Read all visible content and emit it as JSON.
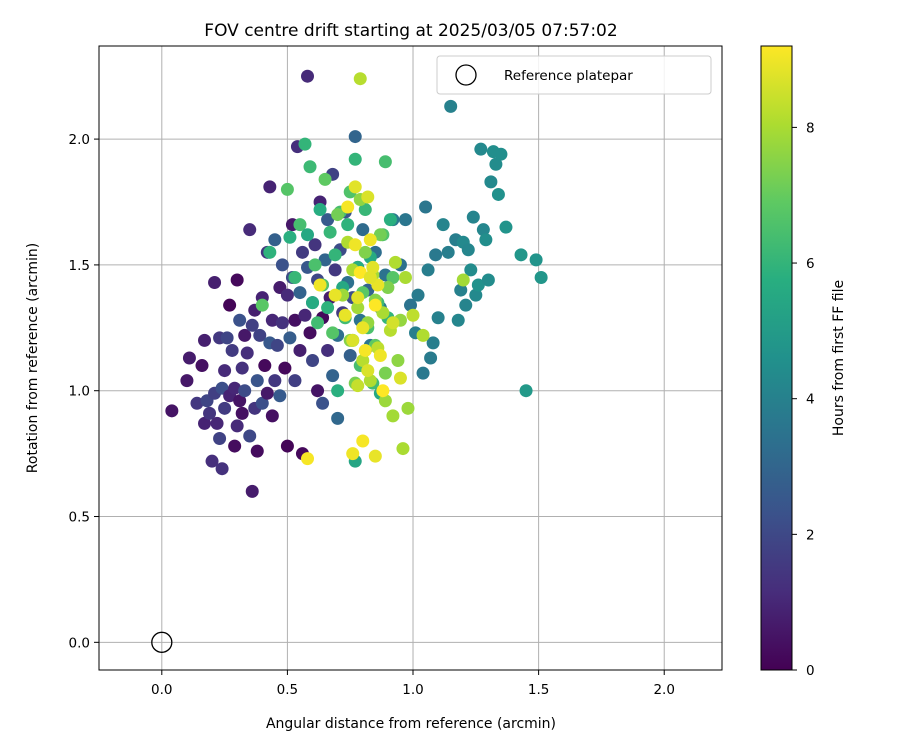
{
  "chart_data": {
    "type": "scatter",
    "title": "FOV centre drift starting at 2025/03/05 07:57:02",
    "xlabel": "Angular distance from reference (arcmin)",
    "ylabel": "Rotation from reference (arcmin)",
    "xlim": [
      -0.25,
      2.23
    ],
    "ylim": [
      -0.11,
      2.37
    ],
    "xticks": [
      "0.0",
      "0.5",
      "1.0",
      "1.5",
      "2.0"
    ],
    "yticks": [
      "0.0",
      "0.5",
      "1.0",
      "1.5",
      "2.0"
    ],
    "grid": true,
    "legend": {
      "position": "top-right",
      "label": "Reference platepar"
    },
    "reference_point": {
      "x": 0.0,
      "y": 0.0
    },
    "colorbar": {
      "label": "Hours from first FF file",
      "colormap": "viridis",
      "range": [
        0,
        9.2
      ],
      "ticks": [
        "0",
        "2",
        "4",
        "6",
        "8"
      ]
    },
    "points": [
      [
        0.04,
        0.92,
        0.5
      ],
      [
        0.1,
        1.04,
        0.6
      ],
      [
        0.11,
        1.13,
        0.7
      ],
      [
        0.14,
        0.95,
        1.5
      ],
      [
        0.16,
        1.1,
        0.4
      ],
      [
        0.17,
        0.87,
        0.9
      ],
      [
        0.17,
        1.2,
        0.8
      ],
      [
        0.18,
        0.96,
        1.9
      ],
      [
        0.19,
        0.91,
        1.4
      ],
      [
        0.2,
        0.72,
        1.2
      ],
      [
        0.21,
        1.43,
        0.8
      ],
      [
        0.21,
        0.99,
        1.7
      ],
      [
        0.22,
        0.87,
        1.0
      ],
      [
        0.23,
        1.21,
        1.5
      ],
      [
        0.23,
        0.81,
        1.8
      ],
      [
        0.24,
        0.69,
        1.3
      ],
      [
        0.24,
        1.01,
        2.2
      ],
      [
        0.25,
        0.93,
        1.6
      ],
      [
        0.25,
        1.08,
        1.1
      ],
      [
        0.26,
        1.21,
        1.9
      ],
      [
        0.27,
        1.34,
        0.1
      ],
      [
        0.27,
        0.98,
        0.9
      ],
      [
        0.28,
        1.16,
        1.6
      ],
      [
        0.29,
        1.01,
        1.0
      ],
      [
        0.29,
        0.78,
        0.3
      ],
      [
        0.3,
        1.44,
        0.2
      ],
      [
        0.3,
        0.86,
        1.1
      ],
      [
        0.31,
        1.28,
        2.3
      ],
      [
        0.31,
        0.96,
        0.5
      ],
      [
        0.32,
        1.09,
        1.3
      ],
      [
        0.32,
        0.91,
        0.4
      ],
      [
        0.33,
        1.22,
        0.6
      ],
      [
        0.33,
        1.0,
        2.1
      ],
      [
        0.34,
        1.15,
        1.2
      ],
      [
        0.35,
        1.64,
        1.1
      ],
      [
        0.35,
        0.82,
        2.0
      ],
      [
        0.36,
        0.6,
        0.7
      ],
      [
        0.36,
        1.26,
        1.7
      ],
      [
        0.37,
        1.32,
        0.8
      ],
      [
        0.37,
        0.93,
        1.4
      ],
      [
        0.38,
        1.04,
        2.4
      ],
      [
        0.38,
        0.76,
        0.3
      ],
      [
        0.39,
        1.22,
        1.8
      ],
      [
        0.4,
        0.95,
        2.2
      ],
      [
        0.4,
        1.37,
        0.9
      ],
      [
        0.41,
        1.1,
        0.2
      ],
      [
        0.42,
        1.55,
        1.4
      ],
      [
        0.42,
        0.99,
        0.6
      ],
      [
        0.43,
        1.81,
        0.9
      ],
      [
        0.43,
        1.19,
        2.5
      ],
      [
        0.44,
        0.9,
        0.4
      ],
      [
        0.44,
        1.28,
        1.0
      ],
      [
        0.45,
        1.04,
        1.5
      ],
      [
        0.45,
        1.6,
        2.8
      ],
      [
        0.46,
        1.18,
        1.9
      ],
      [
        0.47,
        1.41,
        0.7
      ],
      [
        0.47,
        0.98,
        2.6
      ],
      [
        0.48,
        1.27,
        1.3
      ],
      [
        0.48,
        1.5,
        2.3
      ],
      [
        0.49,
        1.09,
        0.2
      ],
      [
        0.5,
        1.38,
        1.1
      ],
      [
        0.5,
        0.78,
        0.1
      ],
      [
        0.51,
        1.21,
        2.7
      ],
      [
        0.52,
        1.45,
        2.1
      ],
      [
        0.52,
        1.66,
        0.6
      ],
      [
        0.53,
        1.28,
        0.4
      ],
      [
        0.53,
        1.04,
        1.7
      ],
      [
        0.54,
        1.97,
        1.2
      ],
      [
        0.55,
        1.39,
        2.9
      ],
      [
        0.55,
        1.16,
        0.8
      ],
      [
        0.56,
        1.55,
        1.6
      ],
      [
        0.56,
        0.75,
        0.2
      ],
      [
        0.57,
        1.3,
        1.0
      ],
      [
        0.58,
        2.25,
        1.1
      ],
      [
        0.58,
        1.49,
        2.5
      ],
      [
        0.59,
        1.23,
        0.3
      ],
      [
        0.6,
        1.12,
        1.9
      ],
      [
        0.6,
        1.35,
        3.1
      ],
      [
        0.61,
        1.58,
        1.4
      ],
      [
        0.62,
        1.0,
        0.5
      ],
      [
        0.62,
        1.44,
        2.0
      ],
      [
        0.63,
        1.75,
        0.9
      ],
      [
        0.64,
        1.29,
        0.2
      ],
      [
        0.64,
        0.95,
        2.3
      ],
      [
        0.65,
        1.52,
        3.0
      ],
      [
        0.66,
        1.16,
        1.2
      ],
      [
        0.66,
        1.68,
        2.6
      ],
      [
        0.67,
        1.37,
        0.7
      ],
      [
        0.68,
        1.06,
        2.9
      ],
      [
        0.68,
        1.86,
        1.8
      ],
      [
        0.69,
        1.48,
        1.5
      ],
      [
        0.7,
        1.22,
        3.3
      ],
      [
        0.7,
        0.89,
        3.1
      ],
      [
        0.71,
        1.56,
        2.1
      ],
      [
        0.72,
        1.31,
        1.6
      ],
      [
        0.73,
        1.71,
        2.4
      ],
      [
        0.74,
        1.43,
        3.4
      ],
      [
        0.75,
        1.14,
        2.8
      ],
      [
        0.76,
        1.37,
        2.2
      ],
      [
        0.77,
        2.01,
        3.0
      ],
      [
        0.78,
        1.49,
        2.7
      ],
      [
        0.79,
        1.28,
        3.5
      ],
      [
        0.8,
        1.64,
        3.2
      ],
      [
        0.82,
        1.4,
        2.9
      ],
      [
        0.83,
        1.18,
        3.6
      ],
      [
        0.85,
        1.55,
        3.3
      ],
      [
        0.87,
        1.33,
        3.8
      ],
      [
        0.89,
        1.46,
        3.5
      ],
      [
        0.92,
        1.68,
        3.7
      ],
      [
        0.95,
        1.5,
        3.4
      ],
      [
        0.97,
        1.68,
        3.6
      ],
      [
        0.99,
        1.34,
        3.5
      ],
      [
        1.01,
        1.23,
        3.9
      ],
      [
        1.02,
        1.38,
        3.8
      ],
      [
        1.04,
        1.07,
        3.7
      ],
      [
        1.05,
        1.73,
        3.6
      ],
      [
        1.06,
        1.48,
        3.9
      ],
      [
        1.07,
        1.13,
        3.8
      ],
      [
        1.08,
        1.19,
        3.9
      ],
      [
        1.09,
        1.54,
        3.7
      ],
      [
        1.1,
        1.29,
        4.0
      ],
      [
        1.12,
        1.66,
        4.1
      ],
      [
        1.14,
        1.55,
        3.9
      ],
      [
        1.15,
        2.13,
        4.0
      ],
      [
        1.17,
        1.6,
        3.9
      ],
      [
        1.18,
        1.28,
        4.2
      ],
      [
        1.19,
        1.4,
        4.0
      ],
      [
        1.2,
        1.59,
        4.3
      ],
      [
        1.21,
        1.34,
        4.1
      ],
      [
        1.22,
        1.56,
        4.2
      ],
      [
        1.23,
        1.48,
        4.4
      ],
      [
        1.24,
        1.69,
        4.1
      ],
      [
        1.25,
        1.38,
        4.3
      ],
      [
        1.26,
        1.42,
        4.6
      ],
      [
        1.27,
        1.96,
        4.3
      ],
      [
        1.28,
        1.64,
        4.2
      ],
      [
        1.29,
        1.6,
        4.5
      ],
      [
        1.3,
        1.44,
        4.4
      ],
      [
        1.31,
        1.83,
        4.3
      ],
      [
        1.32,
        1.95,
        4.5
      ],
      [
        1.33,
        1.9,
        4.4
      ],
      [
        1.34,
        1.78,
        4.6
      ],
      [
        1.35,
        1.94,
        4.5
      ],
      [
        1.37,
        1.65,
        4.7
      ],
      [
        1.43,
        1.54,
        4.8
      ],
      [
        1.45,
        1.0,
        4.9
      ],
      [
        1.49,
        1.52,
        4.7
      ],
      [
        1.51,
        1.45,
        4.8
      ],
      [
        0.4,
        1.34,
        6.8
      ],
      [
        0.43,
        1.55,
        5.9
      ],
      [
        0.5,
        1.8,
        6.7
      ],
      [
        0.51,
        1.61,
        5.8
      ],
      [
        0.53,
        1.45,
        6.1
      ],
      [
        0.55,
        1.66,
        6.4
      ],
      [
        0.57,
        1.98,
        6.0
      ],
      [
        0.58,
        1.62,
        5.5
      ],
      [
        0.59,
        1.89,
        6.2
      ],
      [
        0.6,
        1.35,
        5.6
      ],
      [
        0.61,
        1.5,
        6.5
      ],
      [
        0.62,
        1.27,
        6.3
      ],
      [
        0.63,
        1.72,
        5.7
      ],
      [
        0.64,
        1.42,
        6.6
      ],
      [
        0.65,
        1.84,
        6.9
      ],
      [
        0.66,
        1.33,
        5.9
      ],
      [
        0.67,
        1.63,
        6.1
      ],
      [
        0.68,
        1.23,
        6.7
      ],
      [
        0.69,
        1.54,
        6.0
      ],
      [
        0.7,
        1.0,
        5.8
      ],
      [
        0.71,
        1.71,
        6.4
      ],
      [
        0.72,
        1.41,
        5.5
      ],
      [
        0.73,
        1.29,
        6.3
      ],
      [
        0.74,
        1.66,
        5.9
      ],
      [
        0.75,
        1.79,
        6.6
      ],
      [
        0.76,
        1.2,
        6.2
      ],
      [
        0.77,
        1.92,
        6.0
      ],
      [
        0.78,
        1.49,
        5.7
      ],
      [
        0.79,
        1.1,
        6.4
      ],
      [
        0.8,
        1.39,
        6.8
      ],
      [
        0.81,
        1.72,
        6.1
      ],
      [
        0.82,
        1.25,
        6.5
      ],
      [
        0.83,
        1.53,
        5.6
      ],
      [
        0.84,
        1.03,
        6.3
      ],
      [
        0.85,
        1.18,
        6.9
      ],
      [
        0.86,
        1.35,
        6.2
      ],
      [
        0.87,
        0.99,
        5.5
      ],
      [
        0.88,
        1.62,
        6.6
      ],
      [
        0.89,
        1.91,
        6.4
      ],
      [
        0.9,
        1.29,
        6.0
      ],
      [
        0.91,
        1.68,
        5.8
      ],
      [
        0.92,
        1.45,
        6.7
      ],
      [
        0.77,
        0.72,
        5.4
      ],
      [
        0.7,
        1.7,
        7.2
      ],
      [
        0.72,
        1.38,
        7.8
      ],
      [
        0.74,
        1.59,
        8.1
      ],
      [
        0.75,
        1.2,
        7.5
      ],
      [
        0.76,
        1.48,
        8.0
      ],
      [
        0.77,
        1.03,
        7.3
      ],
      [
        0.78,
        1.33,
        7.9
      ],
      [
        0.79,
        1.76,
        7.6
      ],
      [
        0.8,
        1.12,
        8.2
      ],
      [
        0.81,
        1.55,
        7.4
      ],
      [
        0.82,
        1.27,
        7.7
      ],
      [
        0.83,
        1.04,
        8.1
      ],
      [
        0.84,
        1.46,
        7.9
      ],
      [
        0.85,
        1.36,
        7.5
      ],
      [
        0.86,
        1.17,
        8.3
      ],
      [
        0.87,
        1.62,
        7.2
      ],
      [
        0.88,
        1.31,
        8.0
      ],
      [
        0.89,
        0.96,
        7.8
      ],
      [
        0.9,
        1.41,
        7.4
      ],
      [
        0.91,
        1.24,
        8.2
      ],
      [
        0.92,
        0.9,
        7.9
      ],
      [
        0.93,
        1.51,
        8.1
      ],
      [
        0.94,
        1.12,
        7.6
      ],
      [
        0.95,
        1.28,
        7.7
      ],
      [
        0.97,
        1.45,
        8.0
      ],
      [
        0.98,
        0.93,
        7.8
      ],
      [
        1.0,
        1.3,
        8.3
      ],
      [
        1.04,
        1.22,
        8.1
      ],
      [
        1.2,
        1.44,
        7.9
      ],
      [
        0.78,
        1.02,
        8.4
      ],
      [
        0.89,
        1.07,
        7.3
      ],
      [
        0.96,
        0.77,
        8.0
      ],
      [
        0.79,
        2.24,
        8.2
      ],
      [
        0.58,
        0.73,
        9.1
      ],
      [
        0.63,
        1.42,
        9.0
      ],
      [
        0.69,
        1.38,
        8.9
      ],
      [
        0.74,
        1.73,
        9.1
      ],
      [
        0.76,
        1.2,
        8.7
      ],
      [
        0.77,
        1.58,
        9.0
      ],
      [
        0.78,
        1.37,
        8.8
      ],
      [
        0.79,
        1.47,
        9.2
      ],
      [
        0.8,
        1.25,
        8.9
      ],
      [
        0.81,
        1.16,
        9.1
      ],
      [
        0.82,
        1.77,
        8.7
      ],
      [
        0.83,
        1.6,
        9.0
      ],
      [
        0.84,
        1.49,
        8.8
      ],
      [
        0.85,
        1.34,
        9.2
      ],
      [
        0.86,
        1.42,
        8.9
      ],
      [
        0.87,
        1.14,
        9.0
      ],
      [
        0.8,
        0.8,
        9.1
      ],
      [
        0.85,
        0.74,
        8.9
      ],
      [
        0.88,
        1.0,
        9.2
      ],
      [
        0.77,
        1.81,
        8.8
      ],
      [
        0.76,
        0.75,
        9.0
      ],
      [
        0.82,
        1.08,
        8.7
      ],
      [
        0.92,
        1.27,
        8.6
      ],
      [
        0.95,
        1.05,
        8.7
      ],
      [
        0.83,
        1.45,
        8.8
      ],
      [
        0.73,
        1.3,
        8.9
      ]
    ]
  }
}
